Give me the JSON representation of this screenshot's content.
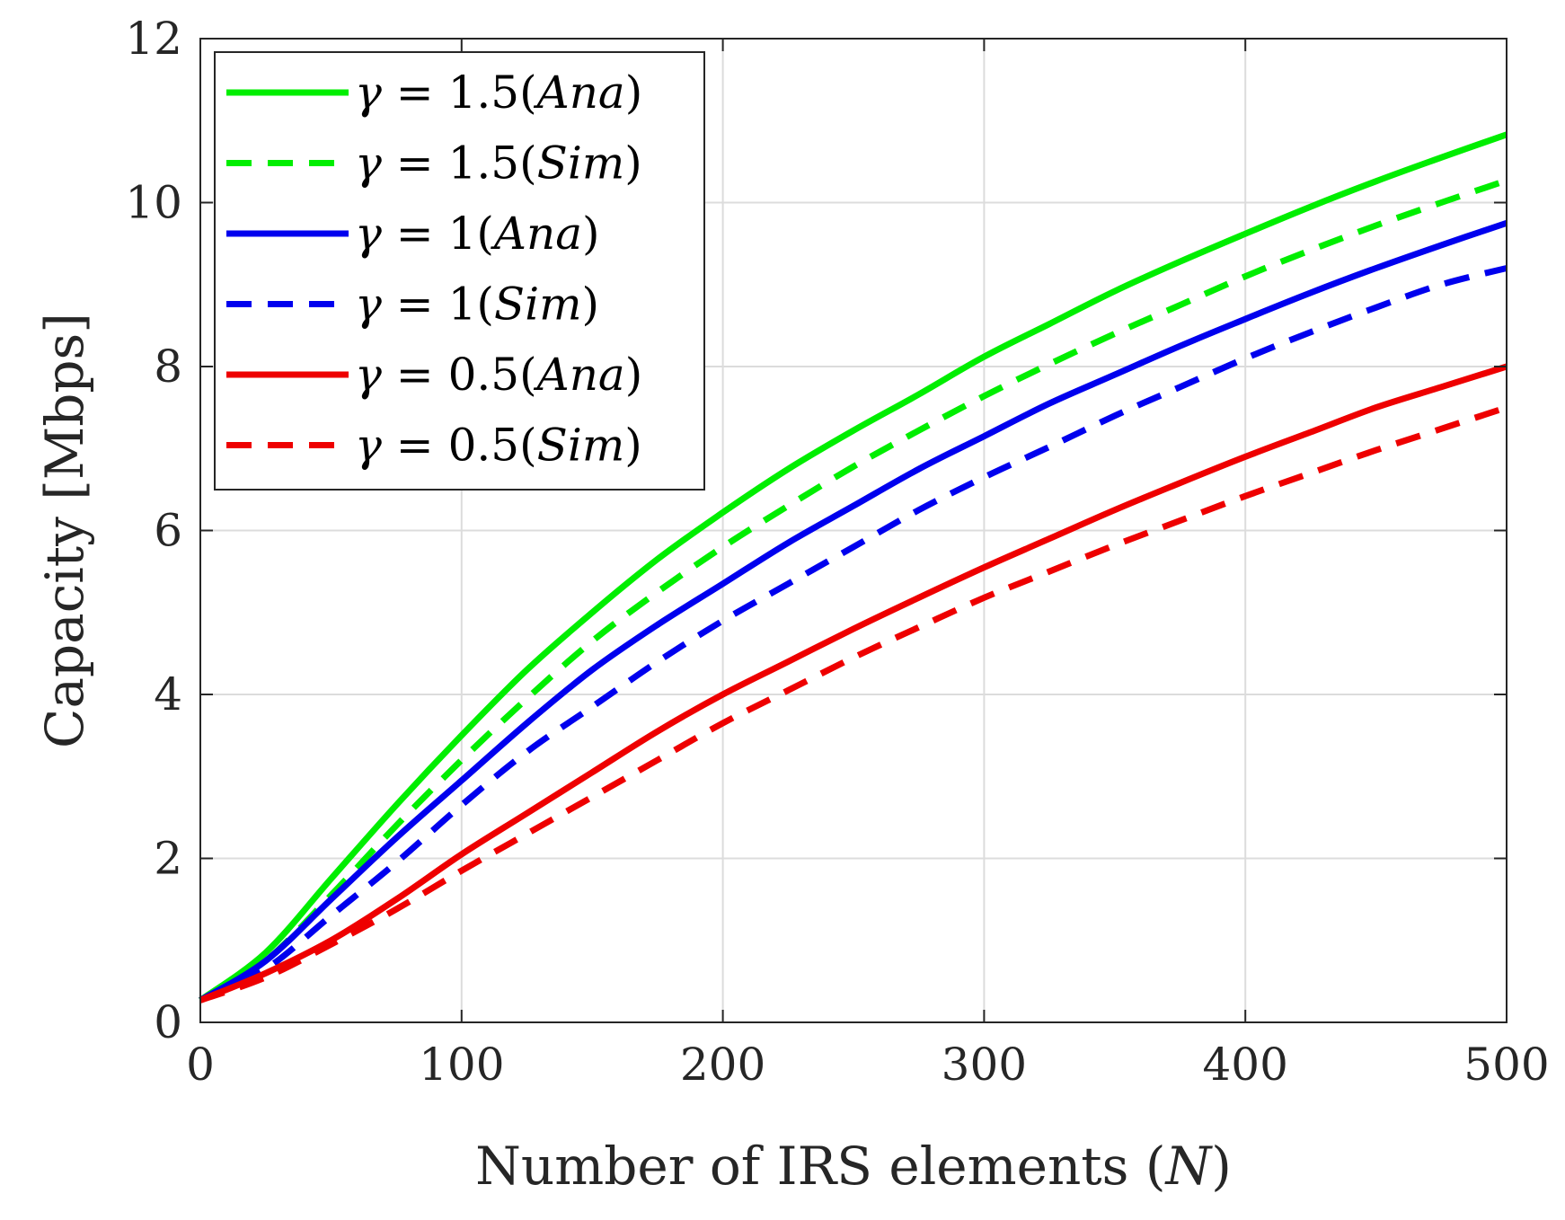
{
  "chart_data": {
    "type": "line",
    "title": "",
    "xlabel": "Number of IRS elements (N)",
    "ylabel": "Capacity [Mbps]",
    "xlim": [
      0,
      500
    ],
    "ylim": [
      0,
      12
    ],
    "xticks": [
      0,
      100,
      200,
      300,
      400,
      500
    ],
    "yticks": [
      0,
      2,
      4,
      6,
      8,
      10,
      12
    ],
    "xtick_labels": [
      "0",
      "100",
      "200",
      "300",
      "400",
      "500"
    ],
    "ytick_labels": [
      "0",
      "2",
      "4",
      "6",
      "8",
      "10",
      "12"
    ],
    "grid": true,
    "legend_position": "top-left",
    "x": [
      0,
      25,
      50,
      75,
      100,
      125,
      150,
      175,
      200,
      225,
      250,
      275,
      300,
      325,
      350,
      375,
      400,
      425,
      450,
      475,
      500
    ],
    "series": [
      {
        "name": "γ = 1.5(Ana)",
        "symbol": "γ",
        "eq": " = 1.5(",
        "mode": "Ana",
        "close": ")",
        "color": "#00ee00",
        "dashed": false,
        "values": [
          0.27,
          0.85,
          1.75,
          2.65,
          3.5,
          4.3,
          5.0,
          5.65,
          6.22,
          6.75,
          7.22,
          7.66,
          8.12,
          8.52,
          8.92,
          9.28,
          9.62,
          9.95,
          10.26,
          10.55,
          10.83
        ]
      },
      {
        "name": "γ = 1.5(Sim)",
        "symbol": "γ",
        "eq": " = 1.5(",
        "mode": "Sim",
        "close": ")",
        "color": "#00ee00",
        "dashed": true,
        "values": [
          0.27,
          0.75,
          1.55,
          2.4,
          3.2,
          3.95,
          4.65,
          5.25,
          5.8,
          6.3,
          6.78,
          7.22,
          7.64,
          8.03,
          8.4,
          8.75,
          9.1,
          9.42,
          9.72,
          10.0,
          10.27
        ]
      },
      {
        "name": "γ = 1(Ana)",
        "symbol": "γ",
        "eq": " = 1(",
        "mode": "Ana",
        "close": ")",
        "color": "#0000ee",
        "dashed": false,
        "values": [
          0.27,
          0.75,
          1.5,
          2.25,
          2.95,
          3.65,
          4.3,
          4.85,
          5.35,
          5.85,
          6.3,
          6.75,
          7.15,
          7.55,
          7.9,
          8.25,
          8.58,
          8.9,
          9.2,
          9.48,
          9.75
        ]
      },
      {
        "name": "γ = 1(Sim)",
        "symbol": "γ",
        "eq": " = 1(",
        "mode": "Sim",
        "close": ")",
        "color": "#0000ee",
        "dashed": true,
        "values": [
          0.27,
          0.65,
          1.3,
          1.95,
          2.65,
          3.3,
          3.85,
          4.4,
          4.9,
          5.35,
          5.8,
          6.25,
          6.65,
          7.02,
          7.4,
          7.75,
          8.1,
          8.42,
          8.72,
          9.0,
          9.2
        ]
      },
      {
        "name": "γ = 0.5(Ana)",
        "symbol": "γ",
        "eq": " = 0.5(",
        "mode": "Ana",
        "close": ")",
        "color": "#ee0000",
        "dashed": false,
        "values": [
          0.27,
          0.6,
          1.0,
          1.5,
          2.05,
          2.55,
          3.05,
          3.55,
          4.0,
          4.4,
          4.8,
          5.18,
          5.55,
          5.9,
          6.25,
          6.58,
          6.9,
          7.2,
          7.5,
          7.75,
          8.0
        ]
      },
      {
        "name": "γ = 0.5(Sim)",
        "symbol": "γ",
        "eq": " = 0.5(",
        "mode": "Sim",
        "close": ")",
        "color": "#ee0000",
        "dashed": true,
        "values": [
          0.27,
          0.55,
          0.95,
          1.38,
          1.85,
          2.3,
          2.75,
          3.2,
          3.65,
          4.05,
          4.45,
          4.82,
          5.18,
          5.5,
          5.82,
          6.12,
          6.42,
          6.7,
          6.98,
          7.24,
          7.5
        ]
      }
    ]
  },
  "xlabel_parts": {
    "main": "Number of IRS elements (",
    "var": "N",
    "close": ")"
  }
}
